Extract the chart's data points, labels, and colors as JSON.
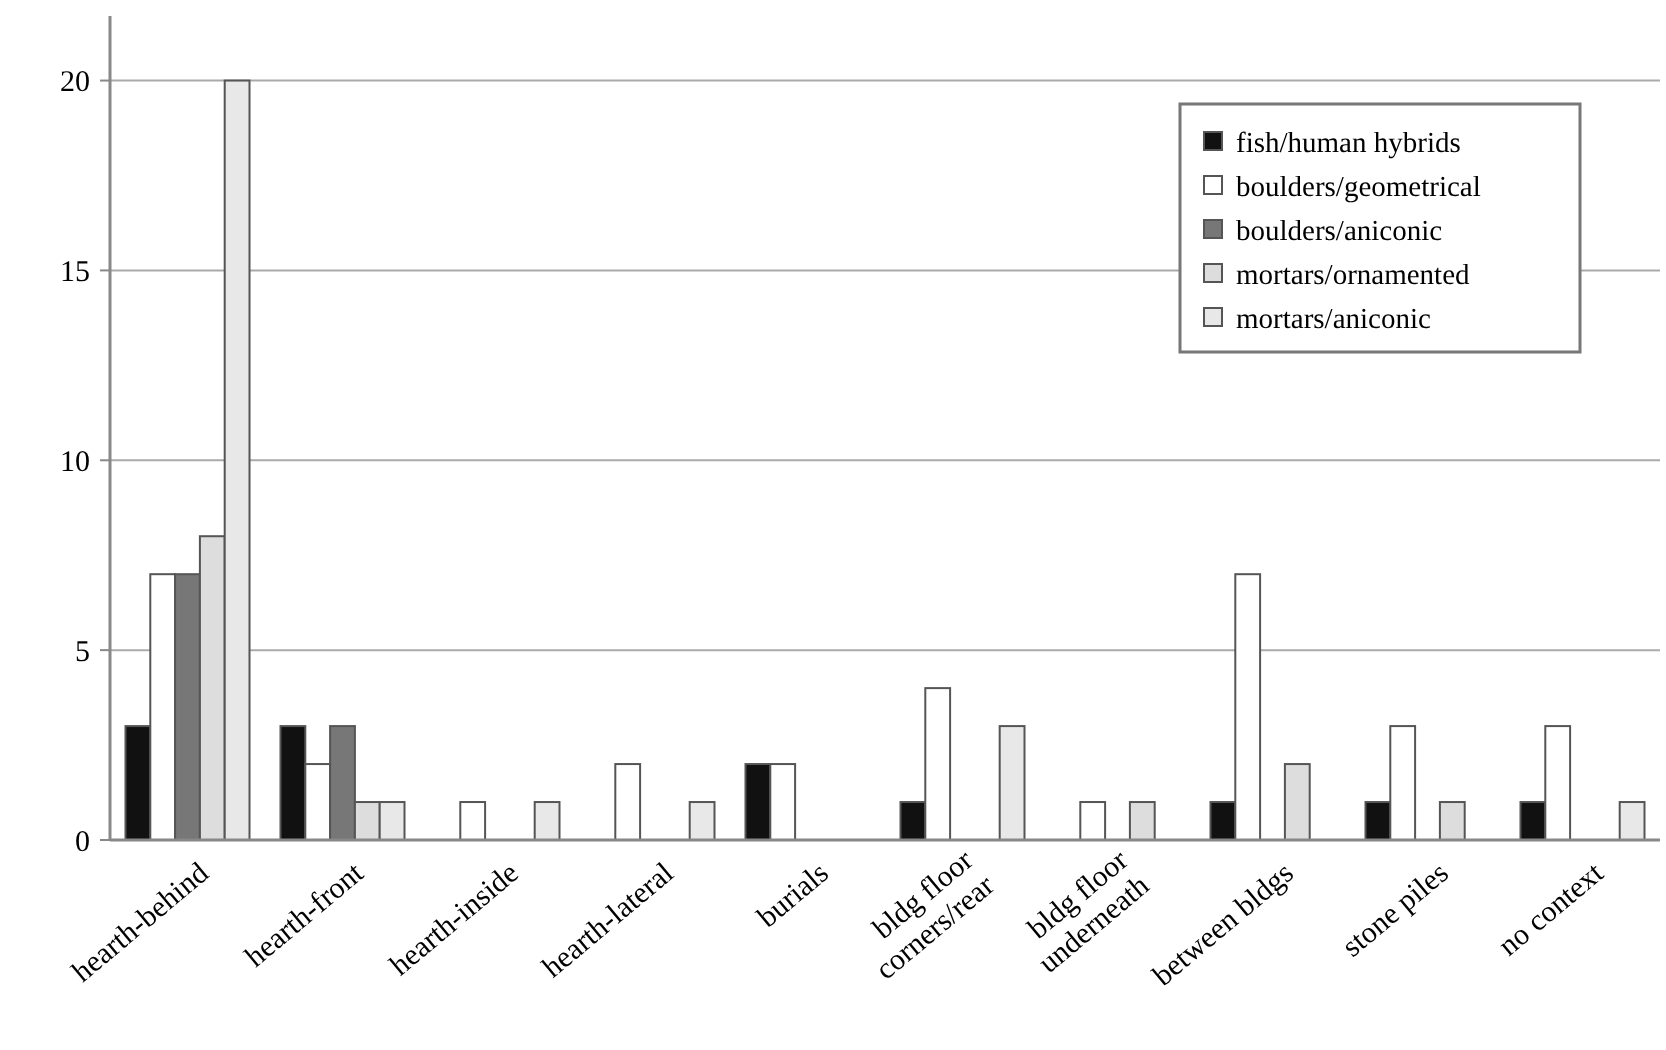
{
  "chart_data": {
    "type": "bar",
    "categories": [
      "hearth-behind",
      "hearth-front",
      "hearth-inside",
      "hearth-lateral",
      "burials",
      "bldg floor corners/rear",
      "bldg floor underneath",
      "between bldgs",
      "stone piles",
      "no context"
    ],
    "series": [
      {
        "name": "fish/human hybrids",
        "color": "#111111",
        "values": [
          3,
          3,
          0,
          0,
          2,
          1,
          0,
          1,
          1,
          1
        ]
      },
      {
        "name": "boulders/geometrical",
        "color": "#ffffff",
        "values": [
          7,
          2,
          1,
          2,
          2,
          4,
          1,
          7,
          3,
          3
        ]
      },
      {
        "name": "boulders/aniconic",
        "color": "#777777",
        "values": [
          7,
          3,
          0,
          0,
          0,
          0,
          0,
          0,
          0,
          0
        ]
      },
      {
        "name": "mortars/ornamented",
        "color": "#dddddd",
        "values": [
          8,
          1,
          0,
          0,
          0,
          0,
          1,
          2,
          1,
          0
        ]
      },
      {
        "name": "mortars/aniconic",
        "color": "#e8e8e8",
        "values": [
          20,
          1,
          1,
          1,
          0,
          3,
          0,
          0,
          0,
          1
        ]
      }
    ],
    "ylim": [
      0,
      21.7
    ],
    "yticks": [
      0,
      5,
      10,
      15,
      20
    ],
    "grid": "y",
    "legend": "top right"
  }
}
